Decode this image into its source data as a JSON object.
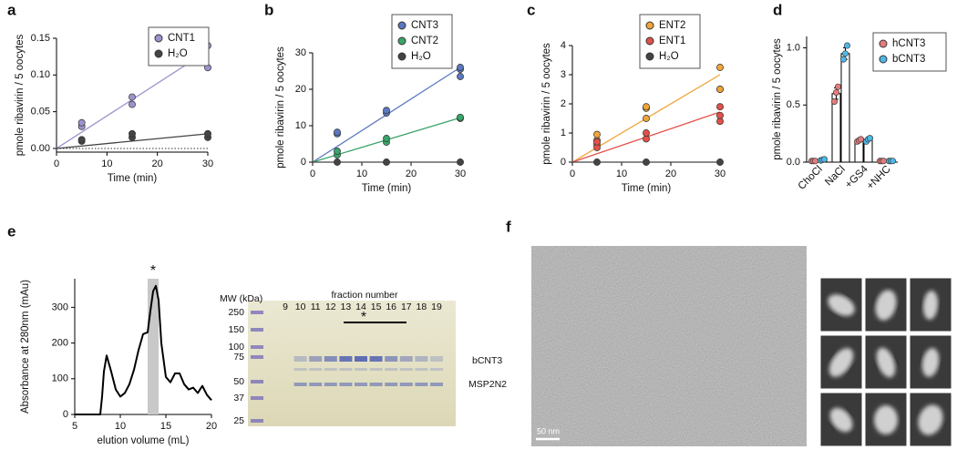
{
  "chart_data": [
    {
      "type": "scatter",
      "panel": "a",
      "xlabel": "Time (min)",
      "ylabel": "pmole ribavirin / 5 oocytes",
      "xlim": [
        0,
        30
      ],
      "xticks": [
        0,
        10,
        20,
        30
      ],
      "ylim": [
        -0.005,
        0.15
      ],
      "yticks": [
        {
          "value": 0,
          "label": "0.00"
        },
        {
          "value": 0.05,
          "label": "0.05"
        },
        {
          "value": 0.1,
          "label": "0.10"
        },
        {
          "value": 0.15,
          "label": "0.15"
        }
      ],
      "hline": 0,
      "legend": "top-right",
      "series": [
        {
          "name": "CNT1",
          "color": "#9c93cc",
          "x": [
            5,
            5,
            15,
            15,
            30,
            30
          ],
          "values": [
            0.03,
            0.035,
            0.06,
            0.07,
            0.11,
            0.14
          ],
          "fit_x": [
            0,
            30
          ],
          "fit_values": [
            0,
            0.133
          ]
        },
        {
          "name": "H₂O",
          "color": "#444444",
          "x": [
            5,
            5,
            15,
            15,
            30,
            30
          ],
          "values": [
            0.01,
            0.012,
            0.015,
            0.02,
            0.015,
            0.02
          ],
          "fit_x": [
            0,
            30
          ],
          "fit_values": [
            0,
            0.02
          ]
        }
      ]
    },
    {
      "type": "scatter",
      "panel": "b",
      "xlabel": "Time (min)",
      "ylabel": "pmole ribavirin / 5 oocytes",
      "xlim": [
        0,
        30
      ],
      "xticks": [
        0,
        10,
        20,
        30
      ],
      "ylim": [
        0,
        30
      ],
      "yticks": [
        0,
        10,
        20,
        30
      ],
      "legend": "top-right",
      "series": [
        {
          "name": "CNT3",
          "color": "#5b78bf",
          "x": [
            5,
            5,
            15,
            15,
            30,
            30,
            30
          ],
          "values": [
            7.8,
            8.2,
            13.5,
            14.2,
            23.5,
            25.5,
            26
          ],
          "fit_x": [
            0,
            30
          ],
          "fit_values": [
            0,
            26
          ]
        },
        {
          "name": "CNT2",
          "color": "#3aa46a",
          "x": [
            5,
            5,
            15,
            15,
            30,
            30
          ],
          "values": [
            2,
            3,
            5.5,
            6.5,
            12,
            12.3
          ],
          "fit_x": [
            0,
            30
          ],
          "fit_values": [
            0,
            12.2
          ]
        },
        {
          "name": "H₂O",
          "color": "#444444",
          "x": [
            5,
            15,
            30
          ],
          "values": [
            0,
            0,
            0
          ],
          "fit_x": [
            0,
            30
          ],
          "fit_values": [
            0,
            0
          ]
        }
      ]
    },
    {
      "type": "scatter",
      "panel": "c",
      "xlabel": "Time (min)",
      "ylabel": "pmole ribavirin / 5 oocytes",
      "xlim": [
        0,
        30
      ],
      "xticks": [
        0,
        10,
        20,
        30
      ],
      "ylim": [
        0,
        4
      ],
      "yticks": [
        0,
        1,
        2,
        3,
        4
      ],
      "legend": "top-right",
      "series": [
        {
          "name": "ENT2",
          "color": "#f0a53a",
          "x": [
            5,
            5,
            5,
            15,
            15,
            15,
            30,
            30,
            30
          ],
          "values": [
            0.6,
            0.75,
            0.95,
            1.5,
            1.85,
            1.9,
            2.5,
            2.5,
            3.25
          ],
          "fit_x": [
            0,
            30
          ],
          "fit_values": [
            0,
            3.0
          ]
        },
        {
          "name": "ENT1",
          "color": "#e2504a",
          "x": [
            5,
            5,
            15,
            15,
            30,
            30,
            30
          ],
          "values": [
            0.5,
            0.7,
            0.8,
            1.0,
            1.4,
            1.6,
            1.9
          ],
          "fit_x": [
            0,
            30
          ],
          "fit_values": [
            0,
            1.72
          ]
        },
        {
          "name": "H₂O",
          "color": "#444444",
          "x": [
            5,
            15,
            30
          ],
          "values": [
            0,
            0,
            0
          ],
          "fit_x": [
            0,
            30
          ],
          "fit_values": [
            0,
            0
          ]
        }
      ]
    },
    {
      "type": "bar",
      "panel": "d",
      "ylabel": "pmole ribavirin / 5 oocytes",
      "categories": [
        "ChoCl",
        "NaCl",
        "+GS4",
        "+NHC"
      ],
      "ylim": [
        0,
        1.1
      ],
      "yticks": [
        {
          "value": 0,
          "label": "0.0"
        },
        {
          "value": 0.5,
          "label": "0.5"
        },
        {
          "value": 1,
          "label": "1.0"
        }
      ],
      "legend": "top-right",
      "series": [
        {
          "name": "hCNT3",
          "color": "#e57b7b",
          "values": [
            0.01,
            0.6,
            0.19,
            0.01
          ],
          "errors": [
            0.005,
            0.05,
            0.015,
            0.005
          ],
          "points": [
            [
              0.01,
              0.01,
              0.01
            ],
            [
              0.53,
              0.61,
              0.66
            ],
            [
              0.18,
              0.19,
              0.2
            ],
            [
              0.01,
              0.01,
              0.01
            ]
          ]
        },
        {
          "name": "bCNT3",
          "color": "#4fb6e6",
          "values": [
            0.02,
            0.95,
            0.2,
            0.01
          ],
          "errors": [
            0.005,
            0.05,
            0.01,
            0.005
          ],
          "points": [
            [
              0.015,
              0.02,
              0.025
            ],
            [
              0.9,
              0.95,
              1.02
            ],
            [
              0.18,
              0.2,
              0.21
            ],
            [
              0.01,
              0.01,
              0.01
            ]
          ]
        }
      ]
    },
    {
      "type": "line",
      "panel": "e",
      "xlabel": "elution volume (mL)",
      "ylabel": "Absorbance at 280nm (mAu)",
      "xlim": [
        5,
        20
      ],
      "xticks": [
        5,
        10,
        15,
        20
      ],
      "ylim": [
        0,
        380
      ],
      "yticks": [
        0,
        100,
        200,
        300
      ],
      "color": "#000000",
      "highlight": [
        13,
        14.2
      ],
      "annotation": "*",
      "x": [
        5,
        7.8,
        8.0,
        8.2,
        8.5,
        9,
        9.5,
        10,
        10.5,
        11,
        11.5,
        12,
        12.5,
        13,
        13.3,
        13.6,
        13.9,
        14.2,
        14.5,
        15,
        15.5,
        16,
        16.5,
        17,
        17.5,
        18,
        18.5,
        19,
        19.5,
        20
      ],
      "values": [
        0,
        0,
        50,
        120,
        165,
        120,
        70,
        50,
        60,
        85,
        125,
        180,
        225,
        230,
        290,
        345,
        360,
        320,
        200,
        105,
        90,
        115,
        115,
        85,
        70,
        75,
        60,
        80,
        55,
        40
      ]
    }
  ],
  "gel": {
    "mw_label": "MW (kDa)",
    "mw": [
      "250",
      "150",
      "100",
      "75",
      "50",
      "37",
      "25"
    ],
    "fraction_label": "fraction number",
    "fractions": [
      "9",
      "10",
      "11",
      "12",
      "13",
      "14",
      "15",
      "16",
      "17",
      "18",
      "19"
    ],
    "annotation": "*",
    "bands": [
      "bCNT3",
      "MSP2N2"
    ]
  },
  "micrograph": {
    "panel": "f",
    "scale_bar": "50 nm"
  }
}
